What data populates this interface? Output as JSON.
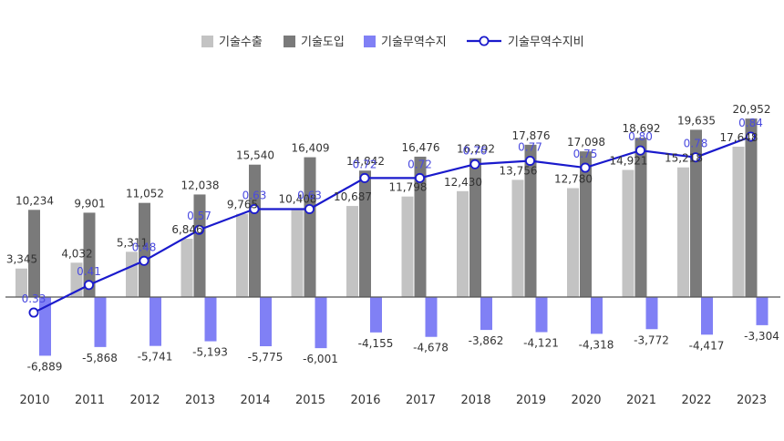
{
  "chart_data": {
    "type": "bar",
    "categories": [
      "2010",
      "2011",
      "2012",
      "2013",
      "2014",
      "2015",
      "2016",
      "2017",
      "2018",
      "2019",
      "2020",
      "2021",
      "2022",
      "2023"
    ],
    "series": [
      {
        "name": "기술수출",
        "type": "bar",
        "color": "#c3c3c3",
        "values": [
          3345,
          4032,
          5311,
          6846,
          9765,
          10408,
          10687,
          11798,
          12430,
          13756,
          12780,
          14921,
          15218,
          17648
        ],
        "labels": [
          "3,345",
          "4,032",
          "5,311",
          "6,846",
          "9,765",
          "10,408",
          "10,687",
          "11,798",
          "12,430",
          "13,756",
          "12,780",
          "14,921",
          "15,218",
          "17,648"
        ]
      },
      {
        "name": "기술도입",
        "type": "bar",
        "color": "#7a7a7a",
        "values": [
          10234,
          9901,
          11052,
          12038,
          15540,
          16409,
          14842,
          16476,
          16292,
          17876,
          17098,
          18692,
          19635,
          20952
        ],
        "labels": [
          "10,234",
          "9,901",
          "11,052",
          "12,038",
          "15,540",
          "16,409",
          "14,842",
          "16,476",
          "16,292",
          "17,876",
          "17,098",
          "18,692",
          "19,635",
          "20,952"
        ]
      },
      {
        "name": "기술무역수지",
        "type": "bar",
        "color": "#8080f5",
        "values": [
          -6889,
          -5868,
          -5741,
          -5193,
          -5775,
          -6001,
          -4155,
          -4678,
          -3862,
          -4121,
          -4318,
          -3772,
          -4417,
          -3304
        ],
        "labels": [
          "-6,889",
          "-5,868",
          "-5,741",
          "-5,193",
          "-5,775",
          "-6,001",
          "-4,155",
          "-4,678",
          "-3,862",
          "-4,121",
          "-4,318",
          "-3,772",
          "-4,417",
          "-3,304"
        ]
      },
      {
        "name": "기술무역수지비",
        "type": "line",
        "color": "#1a1acc",
        "values": [
          0.33,
          0.41,
          0.48,
          0.57,
          0.63,
          0.63,
          0.72,
          0.72,
          0.76,
          0.77,
          0.75,
          0.8,
          0.78,
          0.84
        ],
        "labels": [
          "0.33",
          "0.41",
          "0.48",
          "0.57",
          "0.63",
          "0.63",
          "0.72",
          "0.72",
          "0.76",
          "0.77",
          "0.75",
          "0.80",
          "0.78",
          "0.84"
        ]
      }
    ],
    "title": "",
    "xlabel": "",
    "ylabel": "",
    "legend_position": "top",
    "grid": false
  }
}
